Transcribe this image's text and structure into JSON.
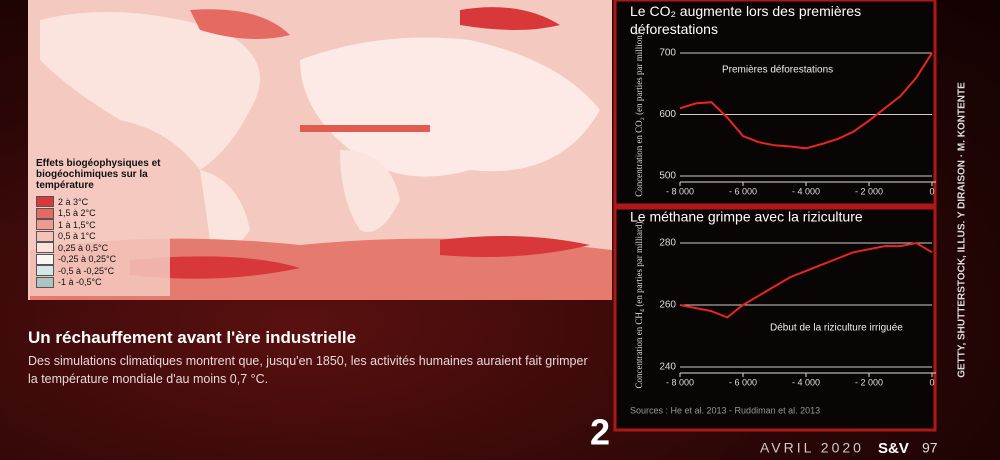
{
  "map": {
    "legend_title": "Effets biogéophysiques et biogéochimiques sur la température",
    "legend": [
      {
        "label": "2 à 3°C",
        "color": "#d8383a"
      },
      {
        "label": "1,5 à 2°C",
        "color": "#e46a62"
      },
      {
        "label": "1 à 1,5°C",
        "color": "#ee9a8e"
      },
      {
        "label": "0,5 à 1°C",
        "color": "#f5c2b8"
      },
      {
        "label": "0,25 à 0,5°C",
        "color": "#fae2dc"
      },
      {
        "label": "-0,25 à 0,25°C",
        "color": "#fbf6f4"
      },
      {
        "label": "-0,5 à -0,25°C",
        "color": "#d6e6e6"
      },
      {
        "label": "-1 à -0,5°C",
        "color": "#a9c6c4"
      }
    ]
  },
  "caption": {
    "title": "Un réchauffement avant l'ère industrielle",
    "text": "Des simulations climatiques montrent que, jusqu'en 1850, les activités humaines auraient fait grimper la température mondiale d'au moins 0,7 °C."
  },
  "chart_data": [
    {
      "type": "line",
      "title": "Le CO₂ augmente lors des premières déforestations",
      "y_label": "Concentration en CO₂ (en parties par million)",
      "annotation": "Premières déforestations",
      "x": [
        -8000,
        -7500,
        -7000,
        -6500,
        -6000,
        -5500,
        -5000,
        -4500,
        -4000,
        -3500,
        -3000,
        -2500,
        -2000,
        -1500,
        -1000,
        -500,
        0
      ],
      "series": [
        {
          "name": "CO₂",
          "color": "#e8261f",
          "values": [
            610,
            618,
            620,
            595,
            565,
            555,
            550,
            548,
            545,
            552,
            560,
            572,
            590,
            610,
            630,
            660,
            700
          ]
        }
      ],
      "xlim": [
        -8000,
        0
      ],
      "xticks": [
        {
          "value": -8000,
          "label": "- 8 000"
        },
        {
          "value": -6000,
          "label": "- 6 000"
        },
        {
          "value": -4000,
          "label": "- 4 000"
        },
        {
          "value": -2000,
          "label": "- 2 000"
        },
        0
      ],
      "ylim": [
        500,
        700
      ],
      "yticks": [
        500,
        600,
        700
      ],
      "grid": true
    },
    {
      "type": "line",
      "title": "Le méthane grimpe avec la riziculture",
      "y_label": "Concentration en CH₄ (en parties par milliard)",
      "annotation": "Début de la riziculture irriguée",
      "x": [
        -8000,
        -7500,
        -7000,
        -6500,
        -6000,
        -5500,
        -5000,
        -4500,
        -4000,
        -3500,
        -3000,
        -2500,
        -2000,
        -1500,
        -1000,
        -500,
        0
      ],
      "series": [
        {
          "name": "CH₄",
          "color": "#e8261f",
          "values": [
            260,
            259,
            258,
            256,
            260,
            263,
            266,
            269,
            271,
            273,
            275,
            277,
            278,
            279,
            279,
            280,
            277
          ]
        }
      ],
      "xlim": [
        -8000,
        0
      ],
      "xticks": [
        {
          "value": -8000,
          "label": "- 8 000"
        },
        {
          "value": -6000,
          "label": "- 6 000"
        },
        {
          "value": -4000,
          "label": "- 4 000"
        },
        {
          "value": -2000,
          "label": "- 2 000"
        },
        0
      ],
      "ylim": [
        240,
        280
      ],
      "yticks": [
        240,
        260,
        280
      ],
      "grid": true
    }
  ],
  "sources": "Sources : He et al. 2013 - Ruddiman et al. 2013",
  "credits": "GETTY, SHUTTERSTOCK, ILLUS. Y DIRAISON · M. KONTENTE",
  "handwritten": "2",
  "footer": {
    "date": "AVRIL 2020",
    "brand": "S&V",
    "page": "97"
  }
}
